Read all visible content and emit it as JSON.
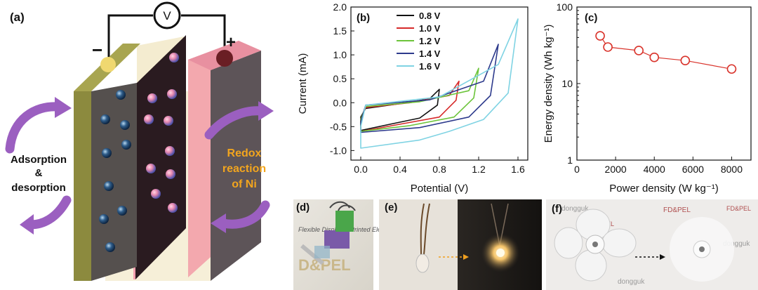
{
  "panels": {
    "a": {
      "label": "(a)",
      "voltmeter": "V",
      "minus_sign": "−",
      "plus_sign": "+",
      "left_text": [
        "Adsorption",
        "&",
        "desorption"
      ],
      "right_text": [
        "Redox",
        "reaction",
        "of Ni"
      ],
      "colors": {
        "left_electrode": "#8c8a3e",
        "right_electrode": "#f0a0a8",
        "separator": "#efe6c8",
        "arrows": "#9b5fc0",
        "redox_text": "#f2a51e"
      }
    },
    "b": {
      "label": "(b)"
    },
    "c": {
      "label": "(c)"
    },
    "d": {
      "label": "(d)",
      "bg_text_1": "D&PEL",
      "bg_text_2": "Flexible Display & Printed Electronics"
    },
    "e": {
      "label": "(e)"
    },
    "f": {
      "label": "(f)",
      "watermarks": [
        "dongguk",
        "FD&PEL",
        "dongguk",
        "FD&PEL",
        "dongguk",
        "FD&PEL"
      ]
    }
  },
  "chart_data": [
    {
      "type": "line",
      "panel": "b",
      "title": "",
      "xlabel": "Potential (V)",
      "ylabel": "Current (mA)",
      "xlim": [
        -0.1,
        1.7
      ],
      "ylim": [
        -1.2,
        2.0
      ],
      "xticks": [
        "0.0",
        "0.4",
        "0.8",
        "1.2",
        "1.6"
      ],
      "yticks": [
        "-1.0",
        "-0.5",
        "0.0",
        "0.5",
        "1.0",
        "1.5",
        "2.0"
      ],
      "legend_position": "top-left",
      "series": [
        {
          "name": "0.8 V",
          "color": "#111111",
          "vmax": 0.8,
          "top": [
            [
              0.0,
              -0.3
            ],
            [
              0.05,
              -0.12
            ],
            [
              0.4,
              -0.02
            ],
            [
              0.7,
              0.08
            ],
            [
              0.8,
              0.28
            ]
          ],
          "bottom": [
            [
              0.8,
              0.28
            ],
            [
              0.78,
              -0.05
            ],
            [
              0.6,
              -0.32
            ],
            [
              0.3,
              -0.45
            ],
            [
              0.0,
              -0.58
            ]
          ]
        },
        {
          "name": "1.0 V",
          "color": "#d62a2a",
          "vmax": 1.0,
          "top": [
            [
              0.0,
              -0.35
            ],
            [
              0.05,
              -0.1
            ],
            [
              0.5,
              0.0
            ],
            [
              0.9,
              0.15
            ],
            [
              1.0,
              0.45
            ]
          ],
          "bottom": [
            [
              1.0,
              0.45
            ],
            [
              0.97,
              0.05
            ],
            [
              0.8,
              -0.3
            ],
            [
              0.4,
              -0.45
            ],
            [
              0.0,
              -0.6
            ]
          ]
        },
        {
          "name": "1.2 V",
          "color": "#6cc43a",
          "vmax": 1.2,
          "top": [
            [
              0.0,
              -0.35
            ],
            [
              0.05,
              -0.08
            ],
            [
              0.6,
              0.02
            ],
            [
              1.1,
              0.25
            ],
            [
              1.2,
              0.72
            ]
          ],
          "bottom": [
            [
              1.2,
              0.72
            ],
            [
              1.15,
              0.1
            ],
            [
              0.95,
              -0.3
            ],
            [
              0.5,
              -0.48
            ],
            [
              0.0,
              -0.6
            ]
          ]
        },
        {
          "name": "1.4 V",
          "color": "#2d3a8c",
          "vmax": 1.4,
          "top": [
            [
              0.0,
              -0.4
            ],
            [
              0.05,
              -0.05
            ],
            [
              0.7,
              0.06
            ],
            [
              1.25,
              0.45
            ],
            [
              1.4,
              1.22
            ]
          ],
          "bottom": [
            [
              1.4,
              1.22
            ],
            [
              1.32,
              0.15
            ],
            [
              1.1,
              -0.3
            ],
            [
              0.6,
              -0.52
            ],
            [
              0.0,
              -0.62
            ]
          ]
        },
        {
          "name": "1.6 V",
          "color": "#7fd3e3",
          "vmax": 1.6,
          "top": [
            [
              0.0,
              -0.5
            ],
            [
              0.05,
              -0.05
            ],
            [
              0.8,
              0.12
            ],
            [
              1.4,
              0.8
            ],
            [
              1.6,
              1.75
            ]
          ],
          "bottom": [
            [
              1.6,
              1.75
            ],
            [
              1.5,
              0.2
            ],
            [
              1.25,
              -0.35
            ],
            [
              0.9,
              -0.6
            ],
            [
              0.6,
              -0.78
            ],
            [
              0.0,
              -0.95
            ]
          ]
        }
      ]
    },
    {
      "type": "scatter",
      "panel": "c",
      "title": "",
      "xlabel": "Power density (W kg⁻¹)",
      "ylabel": "Energy density (Wh kg⁻¹)",
      "xlim": [
        0,
        9000
      ],
      "ylim": [
        1,
        100
      ],
      "yscale": "log",
      "xticks": [
        "0",
        "2000",
        "4000",
        "6000",
        "8000"
      ],
      "yticks": [
        "1",
        "10",
        "100"
      ],
      "color": "#d9332b",
      "x": [
        1200,
        1600,
        3200,
        4000,
        5600,
        8000
      ],
      "y": [
        42,
        30,
        27,
        22,
        20,
        15.5
      ]
    }
  ]
}
